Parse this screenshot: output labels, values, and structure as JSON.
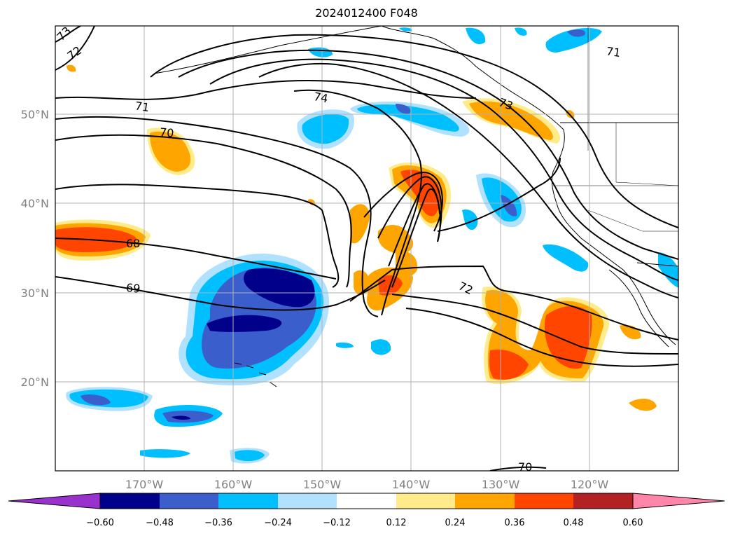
{
  "title": "2024012400 F048",
  "lon_ticks": [
    "170°W",
    "160°W",
    "150°W",
    "140°W",
    "130°W",
    "120°W"
  ],
  "lat_ticks": [
    "50°N",
    "40°N",
    "30°N",
    "20°N"
  ],
  "colorbar": {
    "levels": [
      "−0.60",
      "−0.48",
      "−0.36",
      "−0.24",
      "−0.12",
      "0.12",
      "0.24",
      "0.36",
      "0.48",
      "0.60"
    ],
    "colors": [
      "#9932cc",
      "#00008b",
      "#3a5fcd",
      "#00bfff",
      "#b0e2ff",
      "#ffffff",
      "#ffeb8a",
      "#ffa500",
      "#ff4500",
      "#b22222",
      "#ff85aa"
    ]
  },
  "contour_labels": [
    "73",
    "72",
    "71",
    "70",
    "74",
    "71",
    "73",
    "68",
    "69",
    "72",
    "70"
  ]
}
